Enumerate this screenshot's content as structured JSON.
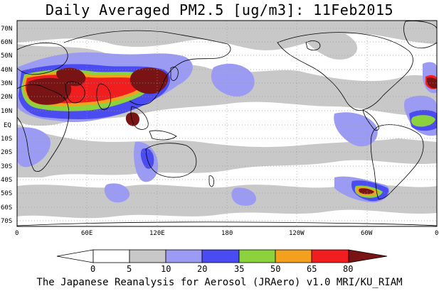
{
  "title": "Daily Averaged PM2.5 [ug/m3]: 11Feb2015",
  "footer": "The Japanese Reanalysis for Aerosol (JRAero) v1.0 MRI/KU_RIAM",
  "lat_labels": [
    "70N",
    "60N",
    "50N",
    "40N",
    "30N",
    "20N",
    "10N",
    "EQ",
    "10S",
    "20S",
    "30S",
    "40S",
    "50S",
    "60S",
    "70S"
  ],
  "lon_labels": [
    "0",
    "60E",
    "120E",
    "180",
    "120W",
    "60W",
    "0"
  ],
  "colorbar": {
    "ticks": [
      "0",
      "5",
      "10",
      "20",
      "35",
      "50",
      "65",
      "80"
    ],
    "colors": [
      "#ffffff",
      "#ffffff",
      "#c8c8c8",
      "#9b9bf3",
      "#4b4bf2",
      "#8cd23c",
      "#f2a01e",
      "#f01e1e",
      "#7a1414"
    ]
  },
  "map_colors": {
    "land_outline": "#000000",
    "grid": "#9a9a9a"
  }
}
